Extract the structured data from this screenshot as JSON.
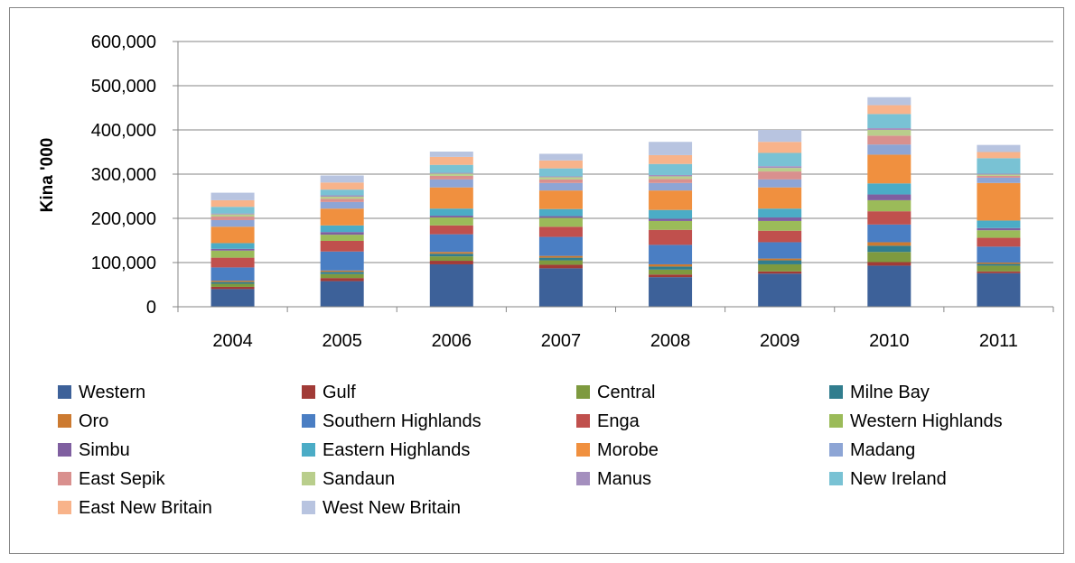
{
  "chart_data": {
    "type": "bar",
    "stacked": true,
    "title": "",
    "xlabel": "",
    "ylabel": "Kina '000",
    "ylim": [
      0,
      600000
    ],
    "yticks": [
      0,
      100000,
      200000,
      300000,
      400000,
      500000,
      600000
    ],
    "ytick_labels": [
      "0",
      "100,000",
      "200,000",
      "300,000",
      "400,000",
      "500,000",
      "600,000"
    ],
    "grid": true,
    "legend_position": "bottom",
    "categories": [
      "2004",
      "2005",
      "2006",
      "2007",
      "2008",
      "2009",
      "2010",
      "2011"
    ],
    "series": [
      {
        "name": "Western",
        "color": "#3D6199",
        "values": [
          40000,
          58000,
          96000,
          87000,
          67000,
          75000,
          93000,
          76000
        ]
      },
      {
        "name": "Gulf",
        "color": "#A13B37",
        "values": [
          5000,
          7000,
          8000,
          8000,
          6000,
          5000,
          8000,
          4000
        ]
      },
      {
        "name": "Central",
        "color": "#7E9A3F",
        "values": [
          7000,
          9000,
          10000,
          10000,
          11000,
          16000,
          23000,
          13000
        ]
      },
      {
        "name": "Milne Bay",
        "color": "#317D8E",
        "values": [
          4000,
          5000,
          6000,
          6000,
          7000,
          9000,
          14000,
          4000
        ]
      },
      {
        "name": "Oro",
        "color": "#CC7A30",
        "values": [
          3000,
          3000,
          4000,
          4000,
          5000,
          4000,
          8000,
          3000
        ]
      },
      {
        "name": "Southern Highlands",
        "color": "#4A7EC3",
        "values": [
          30000,
          43000,
          40000,
          43000,
          44000,
          37000,
          40000,
          36000
        ]
      },
      {
        "name": "Enga",
        "color": "#C0504D",
        "values": [
          22000,
          24000,
          20000,
          23000,
          34000,
          26000,
          30000,
          20000
        ]
      },
      {
        "name": "Western Highlands",
        "color": "#9BBB59",
        "values": [
          16000,
          14000,
          18000,
          20000,
          20000,
          22000,
          25000,
          17000
        ]
      },
      {
        "name": "Simbu",
        "color": "#7F5FA0",
        "values": [
          4000,
          6000,
          4000,
          4000,
          5000,
          8000,
          13000,
          5000
        ]
      },
      {
        "name": "Eastern Highlands",
        "color": "#4BACC6",
        "values": [
          13000,
          15000,
          16000,
          16000,
          20000,
          20000,
          25000,
          17000
        ]
      },
      {
        "name": "Morobe",
        "color": "#F0903F",
        "values": [
          37000,
          38000,
          48000,
          42000,
          44000,
          48000,
          65000,
          85000
        ]
      },
      {
        "name": "Madang",
        "color": "#8DA5D5",
        "values": [
          15000,
          15000,
          18000,
          17000,
          17000,
          18000,
          23000,
          12000
        ]
      },
      {
        "name": "East Sepik",
        "color": "#D9908E",
        "values": [
          8000,
          7000,
          8000,
          8000,
          9000,
          18000,
          20000,
          4000
        ]
      },
      {
        "name": "Sandaun",
        "color": "#B9CE8C",
        "values": [
          5000,
          5000,
          5000,
          5000,
          6000,
          8000,
          13000,
          3000
        ]
      },
      {
        "name": "Manus",
        "color": "#A48FBE",
        "values": [
          2000,
          3000,
          2000,
          2000,
          3000,
          4000,
          4000,
          2000
        ]
      },
      {
        "name": "New Ireland",
        "color": "#79C2D4",
        "values": [
          15000,
          13000,
          18000,
          18000,
          25000,
          30000,
          32000,
          35000
        ]
      },
      {
        "name": "East New Britain",
        "color": "#F8B38A",
        "values": [
          15000,
          16000,
          18000,
          18000,
          20000,
          25000,
          20000,
          14000
        ]
      },
      {
        "name": "West New Britain",
        "color": "#B8C4E0",
        "values": [
          17000,
          16000,
          12000,
          15000,
          30000,
          27000,
          18000,
          16000
        ]
      }
    ]
  }
}
